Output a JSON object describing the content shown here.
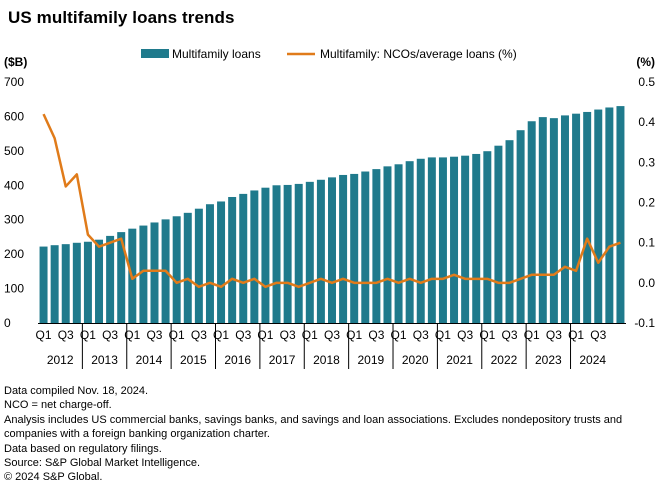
{
  "chart_data": {
    "type": "bar",
    "title": "US multifamily loans trends",
    "y_left_unit": "($B)",
    "y_right_unit": "(%)",
    "ylim": [
      0,
      700
    ],
    "y2lim": [
      -0.1,
      0.5
    ],
    "yticks": [
      0,
      100,
      200,
      300,
      400,
      500,
      600,
      700
    ],
    "y2ticks": [
      "-0.1",
      "0.0",
      "0.1",
      "0.2",
      "0.3",
      "0.4",
      "0.5"
    ],
    "grid": false,
    "legend_position": "top",
    "quarter_labels": [
      "Q1",
      "Q3",
      "Q1",
      "Q3",
      "Q1",
      "Q3",
      "Q1",
      "Q3",
      "Q1",
      "Q3",
      "Q1",
      "Q3",
      "Q1",
      "Q3",
      "Q1",
      "Q3",
      "Q1",
      "Q3",
      "Q1",
      "Q3",
      "Q1",
      "Q3",
      "Q1",
      "Q3",
      "Q1",
      "Q3"
    ],
    "years": [
      "2012",
      "2013",
      "2014",
      "2015",
      "2016",
      "2017",
      "2018",
      "2019",
      "2020",
      "2021",
      "2022",
      "2023",
      "2024"
    ],
    "series": [
      {
        "name": "Multifamily loans",
        "type": "bar",
        "axis": "left",
        "color": "#1f7a8c",
        "values": [
          222,
          226,
          229,
          233,
          236,
          242,
          253,
          264,
          274,
          283,
          292,
          301,
          310,
          320,
          332,
          345,
          353,
          366,
          375,
          385,
          393,
          400,
          401,
          404,
          410,
          416,
          423,
          430,
          433,
          440,
          447,
          455,
          461,
          470,
          477,
          481,
          481,
          483,
          486,
          491,
          499,
          515,
          531,
          560,
          586,
          598,
          595,
          603,
          608,
          613,
          620,
          626,
          630
        ]
      },
      {
        "name": "Multifamily: NCOs/average loans (%)",
        "type": "line",
        "axis": "right",
        "color": "#e07b1a",
        "values": [
          0.42,
          0.36,
          0.24,
          0.27,
          0.12,
          0.09,
          0.1,
          0.11,
          0.01,
          0.03,
          0.03,
          0.03,
          0.0,
          0.01,
          -0.01,
          0.0,
          -0.01,
          0.01,
          0.0,
          0.01,
          -0.01,
          0.0,
          0.0,
          -0.01,
          0.0,
          0.01,
          0.0,
          0.01,
          0.0,
          0.0,
          0.0,
          0.01,
          0.0,
          0.01,
          0.0,
          0.01,
          0.01,
          0.02,
          0.01,
          0.01,
          0.01,
          0.0,
          0.0,
          0.01,
          0.02,
          0.02,
          0.02,
          0.04,
          0.03,
          0.11,
          0.05,
          0.09,
          0.1
        ]
      }
    ]
  },
  "notes": [
    "Data compiled Nov. 18, 2024.",
    "NCO = net charge-off.",
    "Analysis includes US commercial banks, savings banks, and savings and loan associations. Excludes nondepository trusts and companies with a foreign banking organization charter.",
    "Data based on regulatory filings.",
    "Source: S&P Global Market Intelligence.",
    "© 2024 S&P Global."
  ]
}
